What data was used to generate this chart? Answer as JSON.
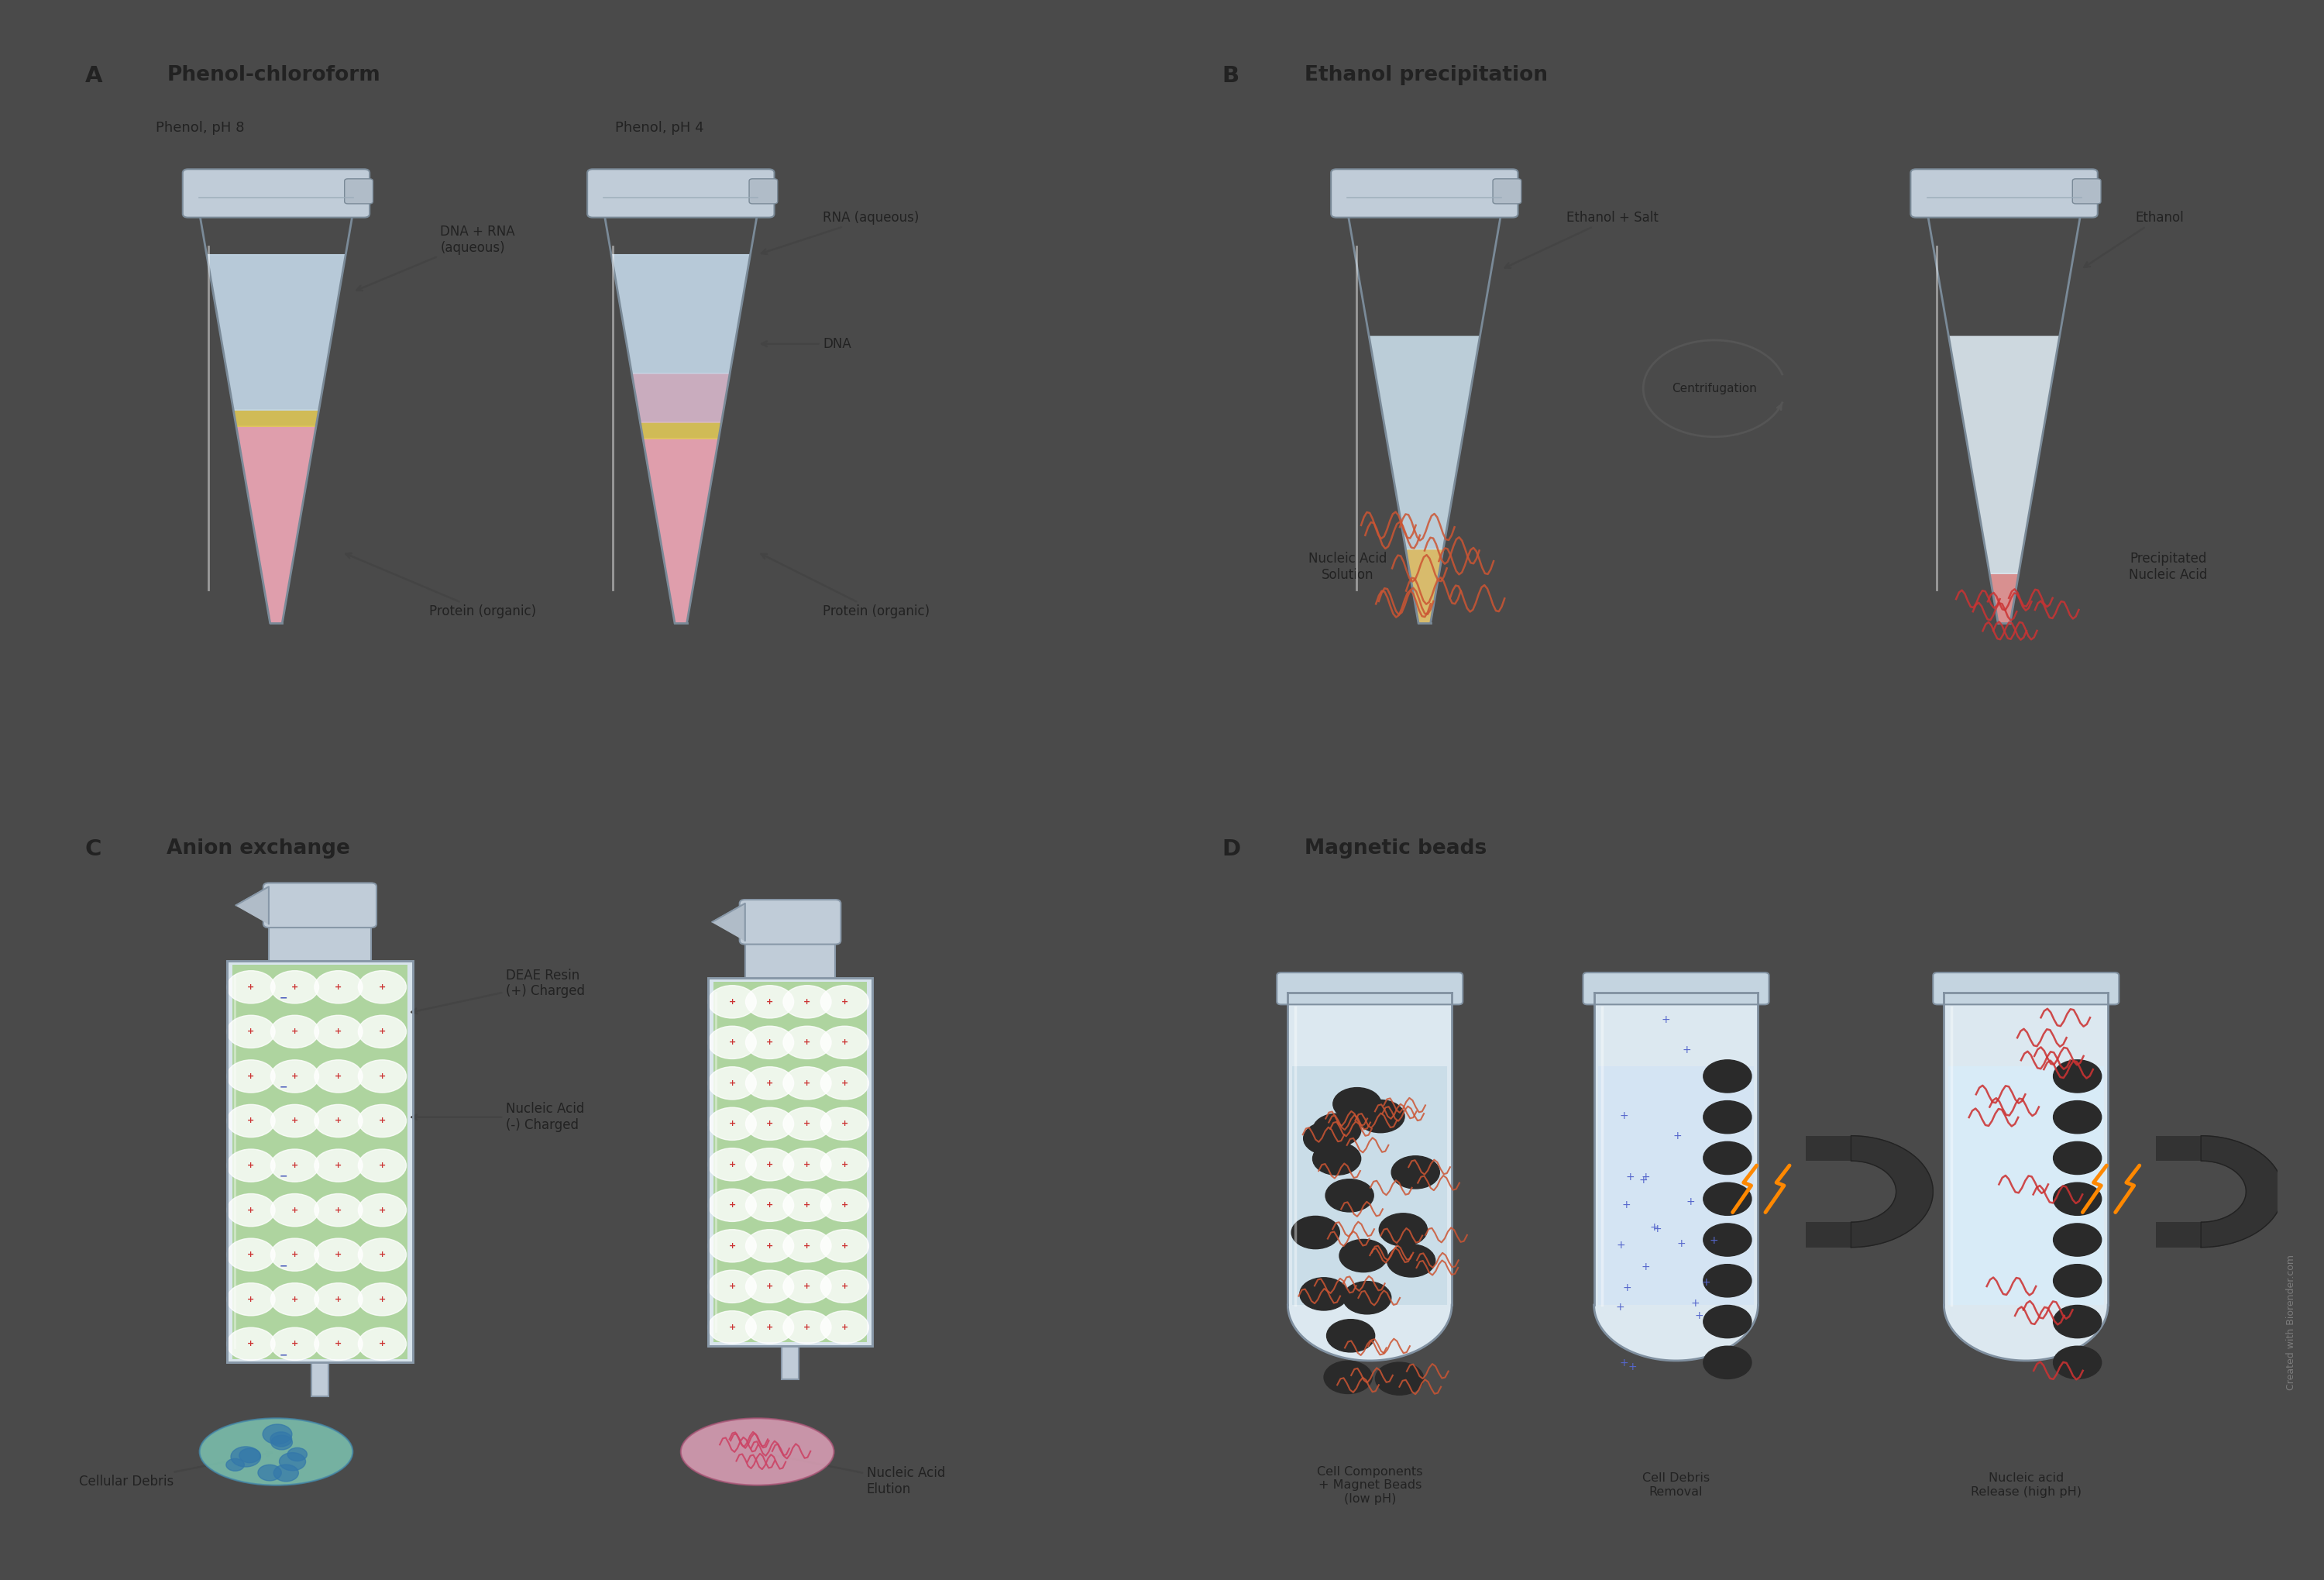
{
  "outer_bg": "#4a4a4a",
  "panel_bg": "#e0e0e0",
  "panel_border": "#aaaaaa",
  "text_dark": "#222222",
  "text_mid": "#444444",
  "title_A": "A  Phenol-chloroform",
  "title_B": "B  Ethanol precipitation",
  "title_C": "C  Anion exchange",
  "title_D": "D  Magnetic beads",
  "label_pH8": "Phenol, pH 8",
  "label_pH4": "Phenol, pH 4",
  "ann_A_dna_rna": "DNA + RNA\n(aqueous)",
  "ann_A_protein1": "Protein (organic)",
  "ann_A_rna": "RNA (aqueous)",
  "ann_A_dna": "DNA",
  "ann_A_protein2": "Protein (organic)",
  "ann_B_ethsalt": "Ethanol + Salt",
  "ann_B_nacsol": "Nucleic Acid\nSolution",
  "ann_B_centrif": "Centrifugation",
  "ann_B_eth": "Ethanol",
  "ann_B_precip": "Precipitated\nNucleic Acid",
  "ann_C_deae": "DEAE Resin\n(+) Charged",
  "ann_C_nac": "Nucleic Acid\n(-) Charged",
  "ann_C_debris": "Cellular Debris",
  "ann_C_elution": "Nucleic Acid\nElution",
  "ann_D1": "Cell Components\n+ Magnet Beads\n(low pH)",
  "ann_D2": "Cell Debris\nRemoval",
  "ann_D3": "Nucleic acid\nRelease (high pH)",
  "watermark": "Created with Biorender.com",
  "color_blue_liq": "#c8dce8",
  "color_pink_liq": "#f0a8b8",
  "color_yellow_int": "#e8d080",
  "color_green_resin": "#8cc860",
  "color_bead_dark": "#2a2a2a",
  "color_orange_dna": "#cc5533",
  "color_red_dna": "#cc3333",
  "color_blue_cross": "#5566cc"
}
